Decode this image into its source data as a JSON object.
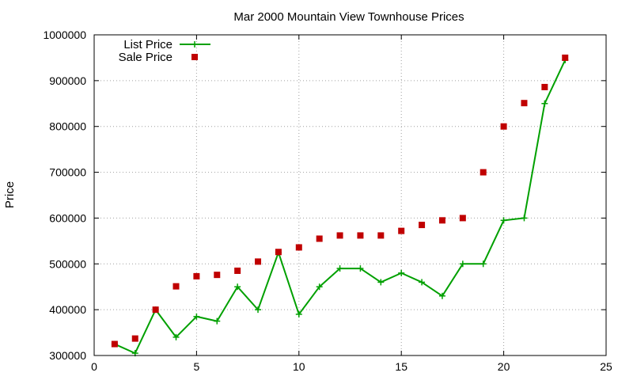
{
  "chart_data": {
    "type": "line",
    "title": "Mar 2000 Mountain View Townhouse Prices",
    "xlabel": "",
    "ylabel": "Price",
    "xlim": [
      0,
      25
    ],
    "ylim": [
      300000,
      1000000
    ],
    "xticks": [
      0,
      5,
      10,
      15,
      20,
      25
    ],
    "yticks": [
      300000,
      400000,
      500000,
      600000,
      700000,
      800000,
      900000,
      1000000
    ],
    "grid": true,
    "legend_position": "top-left",
    "series": [
      {
        "name": "List Price",
        "style": "line-with-plus-markers",
        "color": "#00a000",
        "x": [
          1,
          2,
          3,
          4,
          5,
          6,
          7,
          8,
          9,
          10,
          11,
          12,
          13,
          14,
          15,
          16,
          17,
          18,
          19,
          20,
          21,
          22,
          23
        ],
        "values": [
          325000,
          305000,
          400000,
          340000,
          385000,
          375000,
          450000,
          400000,
          525000,
          390000,
          450000,
          490000,
          490000,
          460000,
          480000,
          460000,
          430000,
          500000,
          500000,
          595000,
          600000,
          850000,
          945000
        ]
      },
      {
        "name": "Sale Price",
        "style": "square-markers",
        "color": "#c00000",
        "x": [
          1,
          2,
          3,
          4,
          5,
          6,
          7,
          8,
          9,
          10,
          11,
          12,
          13,
          14,
          15,
          16,
          17,
          18,
          19,
          20,
          21,
          22,
          23
        ],
        "values": [
          325000,
          337000,
          400000,
          451000,
          473000,
          476000,
          485000,
          505000,
          526000,
          536000,
          555000,
          562000,
          562000,
          562000,
          572000,
          585000,
          595000,
          600000,
          700000,
          800000,
          851000,
          886000,
          950000
        ]
      }
    ]
  }
}
